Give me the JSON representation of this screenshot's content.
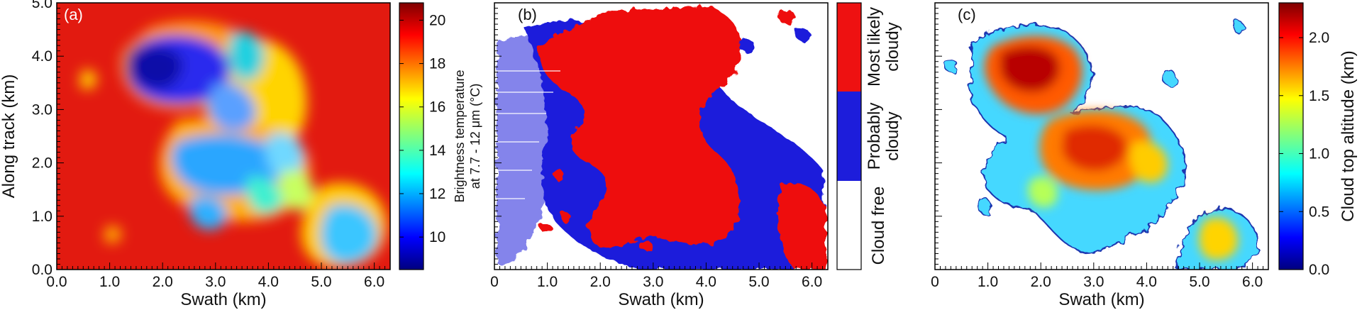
{
  "figure": {
    "panels": [
      "(a)",
      "(b)",
      "(c)"
    ]
  },
  "colors": {
    "cloudy_likely": "#ee1111",
    "probably_cloudy": "#1d1ddb",
    "cloud_free": "#ffffff",
    "jet": [
      "#00007f",
      "#0000ff",
      "#007fff",
      "#00ffff",
      "#7fff7f",
      "#ffff00",
      "#ff7f00",
      "#ff0000",
      "#7f0000"
    ]
  },
  "chart_data": [
    {
      "type": "heatmap",
      "panel_label": "(a)",
      "xlabel": "Swath (km)",
      "ylabel": "Along track (km)",
      "xlim": [
        0.0,
        6.3
      ],
      "ylim": [
        0.0,
        5.0
      ],
      "xticks": [
        "0.0",
        "1.0",
        "2.0",
        "3.0",
        "4.0",
        "5.0",
        "6.0"
      ],
      "yticks": [
        "0.0",
        "1.0",
        "2.0",
        "3.0",
        "4.0",
        "5.0"
      ],
      "colorbar": {
        "label_line1": "Brightness temperature",
        "label_line2": "at 7.7 - 12 μm (°C)",
        "ticks": [
          "10",
          "12",
          "14",
          "16",
          "18",
          "20"
        ],
        "range": [
          8.5,
          20.8
        ]
      }
    },
    {
      "type": "heatmap",
      "panel_label": "(b)",
      "xlabel": "Swath (km)",
      "xlim": [
        0.0,
        6.3
      ],
      "ylim": [
        0.0,
        5.0
      ],
      "xticks": [
        "0",
        "1.0",
        "2.0",
        "3.0",
        "4.0",
        "5.0",
        "6.0"
      ],
      "categories": [
        {
          "label_line1": "Most likely",
          "label_line2": "cloudy"
        },
        {
          "label_line1": "Probably",
          "label_line2": "cloudy"
        },
        {
          "label_line1": "Cloud free",
          "label_line2": ""
        }
      ]
    },
    {
      "type": "heatmap",
      "panel_label": "(c)",
      "xlabel": "Swath (km)",
      "xlim": [
        0.0,
        6.3
      ],
      "ylim": [
        0.0,
        5.0
      ],
      "xticks": [
        "0",
        "1.0",
        "2.0",
        "3.0",
        "4.0",
        "5.0",
        "6.0"
      ],
      "colorbar": {
        "label": "Cloud top altitude (km)",
        "ticks": [
          "0.0",
          "0.5",
          "1.0",
          "1.5",
          "2.0"
        ],
        "range": [
          0.0,
          2.3
        ]
      }
    }
  ]
}
